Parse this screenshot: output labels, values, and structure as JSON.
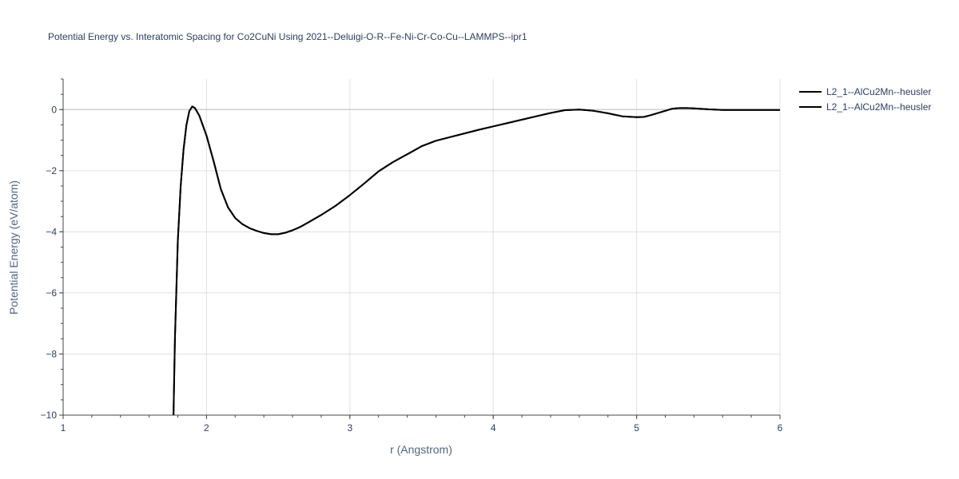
{
  "chart_data": {
    "type": "line",
    "title": "Potential Energy vs. Interatomic Spacing for Co2CuNi Using 2021--Deluigi-O-R--Fe-Ni-Cr-Co-Cu--LAMMPS--ipr1",
    "xlabel": "r (Angstrom)",
    "ylabel": "Potential Energy (eV/atom)",
    "xlim": [
      1,
      6
    ],
    "ylim": [
      -10,
      1
    ],
    "xticks": [
      1,
      2,
      3,
      4,
      5,
      6
    ],
    "yticks": [
      0,
      -2,
      -4,
      -6,
      -8,
      -10
    ],
    "xtick_labels": [
      "1",
      "2",
      "3",
      "4",
      "5",
      "6"
    ],
    "ytick_labels": [
      "0",
      "−2",
      "−4",
      "−6",
      "−8",
      "−10"
    ],
    "grid": true,
    "legend_position": "top-right",
    "series": [
      {
        "name": "L2_1--AlCu2Mn--heusler",
        "color": "#000000",
        "x": [
          1.77,
          1.78,
          1.8,
          1.82,
          1.84,
          1.86,
          1.88,
          1.9,
          1.92,
          1.95,
          2.0,
          2.05,
          2.1,
          2.15,
          2.2,
          2.25,
          2.3,
          2.35,
          2.4,
          2.45,
          2.5,
          2.55,
          2.6,
          2.65,
          2.7,
          2.8,
          2.9,
          3.0,
          3.1,
          3.2,
          3.3,
          3.4,
          3.5,
          3.6,
          3.7,
          3.8,
          3.9,
          4.0,
          4.1,
          4.2,
          4.3,
          4.4,
          4.5,
          4.6,
          4.7,
          4.8,
          4.9,
          5.0,
          5.05,
          5.1,
          5.2,
          5.25,
          5.3,
          5.35,
          5.4,
          5.5,
          5.6,
          5.7,
          5.8,
          5.9,
          6.0
        ],
        "y": [
          -10.0,
          -7.5,
          -4.3,
          -2.5,
          -1.3,
          -0.5,
          -0.05,
          0.1,
          0.05,
          -0.2,
          -0.85,
          -1.7,
          -2.6,
          -3.2,
          -3.55,
          -3.75,
          -3.88,
          -3.97,
          -4.04,
          -4.08,
          -4.08,
          -4.03,
          -3.95,
          -3.85,
          -3.72,
          -3.45,
          -3.15,
          -2.8,
          -2.42,
          -2.02,
          -1.72,
          -1.46,
          -1.2,
          -1.02,
          -0.9,
          -0.78,
          -0.66,
          -0.55,
          -0.44,
          -0.33,
          -0.22,
          -0.11,
          -0.02,
          0.0,
          -0.04,
          -0.12,
          -0.22,
          -0.25,
          -0.24,
          -0.18,
          -0.04,
          0.03,
          0.05,
          0.05,
          0.04,
          0.01,
          -0.01,
          -0.01,
          -0.01,
          -0.01,
          -0.01
        ]
      },
      {
        "name": "L2_1--AlCu2Mn--heusler",
        "color": "#000000",
        "x": [
          1.77,
          1.78,
          1.8,
          1.82,
          1.84,
          1.86,
          1.88,
          1.9,
          1.92,
          1.95,
          2.0,
          2.05,
          2.1,
          2.15,
          2.2,
          2.25,
          2.3,
          2.35,
          2.4,
          2.45,
          2.5,
          2.55,
          2.6,
          2.65,
          2.7,
          2.8,
          2.9,
          3.0,
          3.1,
          3.2,
          3.3,
          3.4,
          3.5,
          3.6,
          3.7,
          3.8,
          3.9,
          4.0,
          4.1,
          4.2,
          4.3,
          4.4,
          4.5,
          4.6,
          4.7,
          4.8,
          4.9,
          5.0,
          5.05,
          5.1,
          5.2,
          5.25,
          5.3,
          5.35,
          5.4,
          5.5,
          5.6,
          5.7,
          5.8,
          5.9,
          6.0
        ],
        "y": [
          -10.0,
          -7.5,
          -4.3,
          -2.5,
          -1.3,
          -0.5,
          -0.05,
          0.1,
          0.05,
          -0.2,
          -0.85,
          -1.7,
          -2.6,
          -3.2,
          -3.55,
          -3.75,
          -3.88,
          -3.97,
          -4.04,
          -4.08,
          -4.08,
          -4.03,
          -3.95,
          -3.85,
          -3.72,
          -3.45,
          -3.15,
          -2.8,
          -2.42,
          -2.02,
          -1.72,
          -1.46,
          -1.2,
          -1.02,
          -0.9,
          -0.78,
          -0.66,
          -0.55,
          -0.44,
          -0.33,
          -0.22,
          -0.11,
          -0.02,
          0.0,
          -0.04,
          -0.12,
          -0.22,
          -0.25,
          -0.24,
          -0.18,
          -0.04,
          0.03,
          0.05,
          0.05,
          0.04,
          0.01,
          -0.01,
          -0.01,
          -0.01,
          -0.01,
          -0.01
        ]
      }
    ]
  }
}
